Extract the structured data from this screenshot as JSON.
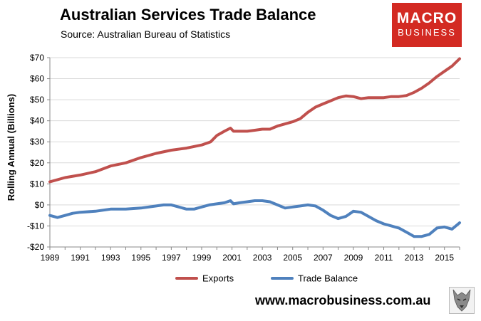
{
  "header": {
    "title": "Australian Services Trade Balance",
    "source": "Source: Australian Bureau of Statistics"
  },
  "logo": {
    "line1": "MACRO",
    "line2": "BUSINESS",
    "color": "#d32a22"
  },
  "footer": {
    "url": "www.macrobusiness.com.au"
  },
  "icons": {
    "wolf": "wolf-head-icon"
  },
  "chart_data": {
    "type": "line",
    "ylabel": "Rolling Annual (Billions)",
    "xlim": [
      1989,
      2016
    ],
    "ylim": [
      -20,
      70
    ],
    "yticks": [
      -20,
      -10,
      0,
      10,
      20,
      30,
      40,
      50,
      60,
      70
    ],
    "ytick_labels": [
      "-$20",
      "-$10",
      "$0",
      "$10",
      "$20",
      "$30",
      "$40",
      "$50",
      "$60",
      "$70"
    ],
    "xticks": [
      1989,
      1991,
      1993,
      1995,
      1997,
      1999,
      2001,
      2003,
      2005,
      2007,
      2009,
      2011,
      2013,
      2015
    ],
    "xtick_labels": [
      "1989",
      "1991",
      "1993",
      "1995",
      "1997",
      "1999",
      "2001",
      "2003",
      "2005",
      "2007",
      "2009",
      "2011",
      "2013",
      "2015"
    ],
    "grid": {
      "horizontal": true,
      "vertical": false
    },
    "legend_position": "bottom",
    "series": [
      {
        "name": "Exports",
        "color": "#c0504d",
        "x": [
          1989.0,
          1990.0,
          1991.0,
          1992.0,
          1993.0,
          1994.0,
          1995.0,
          1996.0,
          1997.0,
          1998.0,
          1999.0,
          1999.6,
          2000.0,
          2000.5,
          2000.9,
          2001.1,
          2002.0,
          2002.5,
          2003.0,
          2003.5,
          2004.0,
          2004.5,
          2005.0,
          2005.5,
          2006.0,
          2006.5,
          2007.0,
          2007.5,
          2008.0,
          2008.5,
          2009.0,
          2009.5,
          2010.0,
          2010.5,
          2011.0,
          2011.5,
          2012.0,
          2012.5,
          2013.0,
          2013.5,
          2014.0,
          2014.5,
          2015.0,
          2015.5,
          2016.0
        ],
        "values": [
          11.0,
          13.0,
          14.2,
          15.8,
          18.5,
          20.0,
          22.5,
          24.5,
          26.0,
          27.0,
          28.5,
          30.0,
          33.0,
          35.0,
          36.5,
          35.0,
          35.0,
          35.5,
          36.0,
          36.0,
          37.5,
          38.5,
          39.5,
          41.0,
          44.0,
          46.5,
          48.0,
          49.5,
          51.0,
          51.8,
          51.5,
          50.5,
          51.0,
          51.0,
          51.0,
          51.5,
          51.5,
          52.0,
          53.5,
          55.5,
          58.0,
          61.0,
          63.5,
          66.0,
          69.5
        ]
      },
      {
        "name": "Trade Balance",
        "color": "#4f81bd",
        "x": [
          1989.0,
          1989.5,
          1990.0,
          1990.5,
          1991.0,
          1992.0,
          1992.5,
          1993.0,
          1994.0,
          1995.0,
          1996.0,
          1996.5,
          1997.0,
          1997.5,
          1998.0,
          1998.5,
          1999.0,
          1999.5,
          2000.0,
          2000.5,
          2000.9,
          2001.1,
          2001.5,
          2002.0,
          2002.5,
          2003.0,
          2003.5,
          2004.0,
          2004.5,
          2005.0,
          2005.5,
          2006.0,
          2006.5,
          2007.0,
          2007.5,
          2008.0,
          2008.5,
          2009.0,
          2009.5,
          2010.0,
          2010.5,
          2011.0,
          2011.5,
          2012.0,
          2012.5,
          2013.0,
          2013.5,
          2014.0,
          2014.5,
          2015.0,
          2015.5,
          2016.0
        ],
        "values": [
          -5.0,
          -6.0,
          -5.0,
          -4.0,
          -3.5,
          -3.0,
          -2.5,
          -2.0,
          -2.0,
          -1.5,
          -0.5,
          0.0,
          0.0,
          -1.0,
          -2.0,
          -2.0,
          -1.0,
          0.0,
          0.5,
          1.0,
          2.0,
          0.5,
          1.0,
          1.5,
          2.0,
          2.0,
          1.5,
          0.0,
          -1.5,
          -1.0,
          -0.5,
          0.0,
          -0.5,
          -2.5,
          -5.0,
          -6.5,
          -5.5,
          -3.0,
          -3.5,
          -5.5,
          -7.5,
          -9.0,
          -10.0,
          -11.0,
          -13.0,
          -15.0,
          -15.0,
          -14.0,
          -11.0,
          -10.5,
          -11.5,
          -8.5
        ]
      }
    ]
  }
}
